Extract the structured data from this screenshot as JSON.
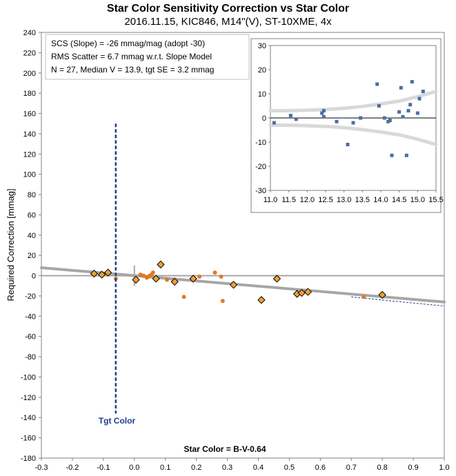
{
  "title": "Star Color Sensitivity Correction vs Star Color",
  "subtitle": "2016.11.15, KIC846, M14\"(V), ST-10XME, 4x",
  "info_lines": [
    "SCS (Slope)  =  -26 mmag/mag (adopt -30)",
    "RMS Scatter = 6.7 mmag w.r.t. Slope Model",
    "N = 27,  Median V = 13.9, tgt SE = 3.2 mmag"
  ],
  "tgt_label": "Tgt Color",
  "colors": {
    "diamond": "#f0a030",
    "dot": "#e07a1f",
    "model": "#a6a6a6",
    "tgt": "#1f3e8c",
    "inset_point": "#4a6fa0",
    "envelope": "#d9d9d9"
  },
  "chart_data": [
    {
      "type": "scatter",
      "title": "Star Color Sensitivity Correction vs Star Color",
      "xlabel": "Star Color = B-V-0.64",
      "ylabel": "Required Correction [mmag]",
      "xlim": [
        -0.3,
        1.0
      ],
      "ylim": [
        -180,
        240
      ],
      "xticks": [
        -0.3,
        -0.2,
        -0.1,
        0.0,
        0.1,
        0.2,
        0.3,
        0.4,
        0.5,
        0.6,
        0.7,
        0.8,
        0.9,
        1.0
      ],
      "yticks": [
        -180,
        -160,
        -140,
        -120,
        -100,
        -80,
        -60,
        -40,
        -20,
        0,
        20,
        40,
        60,
        80,
        100,
        120,
        140,
        160,
        180,
        200,
        220,
        240
      ],
      "target_color_x": -0.06,
      "target_line_y_range": [
        -136,
        150
      ],
      "diamond_points": {
        "x": [
          -0.13,
          -0.105,
          -0.085,
          0.005,
          0.07,
          0.085,
          0.13,
          0.19,
          0.32,
          0.41,
          0.46,
          0.525,
          0.54,
          0.56,
          0.8
        ],
        "y": [
          2,
          1,
          3,
          -4,
          -3,
          11,
          -6,
          -3,
          -9,
          -24,
          -3,
          -18,
          -17,
          -16,
          -19
        ]
      },
      "dot_points": {
        "x": [
          -0.06,
          0.02,
          0.03,
          0.04,
          0.045,
          0.05,
          0.055,
          0.06,
          0.105,
          0.16,
          0.21,
          0.26,
          0.28,
          0.285,
          0.74
        ],
        "y": [
          -3,
          1,
          0,
          -2,
          -1,
          0,
          1,
          3,
          -4,
          -21,
          -1,
          3,
          -1,
          -25,
          -21
        ]
      },
      "slope_model": {
        "slope": -26,
        "x_start": -0.3,
        "x_end": 1.0
      },
      "adopted_slope": {
        "slope": -30,
        "x_start": 0.7,
        "x_end": 1.0
      }
    },
    {
      "type": "scatter",
      "inset": true,
      "xlim": [
        11.0,
        15.5
      ],
      "ylim": [
        -30,
        30
      ],
      "xticks": [
        11.0,
        11.5,
        12.0,
        12.5,
        13.0,
        13.5,
        14.0,
        14.5,
        15.0,
        15.5
      ],
      "yticks": [
        -30,
        -20,
        -10,
        0,
        10,
        20,
        30
      ],
      "points": {
        "x": [
          11.1,
          11.55,
          11.7,
          12.4,
          12.45,
          12.45,
          12.8,
          13.1,
          13.25,
          13.45,
          13.9,
          13.95,
          14.1,
          14.2,
          14.25,
          14.3,
          14.5,
          14.55,
          14.6,
          14.7,
          14.75,
          14.8,
          14.85,
          15.0,
          15.05,
          15.15
        ],
        "y": [
          -2,
          1,
          -0.5,
          2,
          3,
          0.5,
          -1.5,
          -11,
          -2,
          0,
          14,
          5,
          0,
          -1.5,
          -1,
          -15.5,
          2.5,
          12.5,
          0.5,
          -15.5,
          3,
          5.5,
          15,
          2,
          8,
          11
        ]
      },
      "envelope": {
        "x": [
          11.0,
          11.5,
          12.0,
          12.5,
          13.0,
          13.5,
          14.0,
          14.5,
          15.0,
          15.5
        ],
        "upper": [
          3,
          3,
          3.2,
          3.5,
          4,
          4.8,
          5.8,
          7,
          8.8,
          11
        ],
        "lower": [
          -3,
          -3,
          -3.2,
          -3.5,
          -4,
          -4.8,
          -5.8,
          -7,
          -8.8,
          -11
        ]
      }
    }
  ]
}
